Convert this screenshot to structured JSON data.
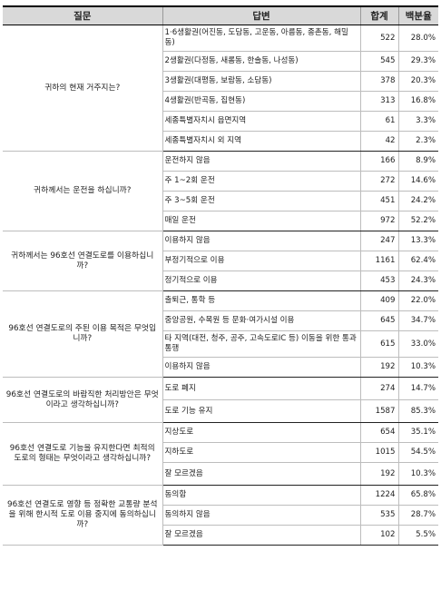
{
  "headers": [
    "질문",
    "답변",
    "합계",
    "백분율"
  ],
  "groups": [
    {
      "question": "귀하의 현재 거주지는?",
      "rows": [
        {
          "answer": "1·6생활권(어진동, 도담동, 고운동, 아름동, 종촌동, 해밀동)",
          "count": "522",
          "pct": "28.0%"
        },
        {
          "answer": "2생활권(다정동, 새롬동, 한솔동, 나성동)",
          "count": "545",
          "pct": "29.3%"
        },
        {
          "answer": "3생활권(대평동, 보람동, 소담동)",
          "count": "378",
          "pct": "20.3%"
        },
        {
          "answer": "4생활권(반곡동, 집현동)",
          "count": "313",
          "pct": "16.8%"
        },
        {
          "answer": "세종특별자치시 읍면지역",
          "count": "61",
          "pct": "3.3%"
        },
        {
          "answer": "세종특별자치시 외 지역",
          "count": "42",
          "pct": "2.3%"
        }
      ]
    },
    {
      "question": "귀하께서는 운전을 하십니까?",
      "rows": [
        {
          "answer": "운전하지 않음",
          "count": "166",
          "pct": "8.9%"
        },
        {
          "answer": "주 1~2회 운전",
          "count": "272",
          "pct": "14.6%"
        },
        {
          "answer": "주 3~5회 운전",
          "count": "451",
          "pct": "24.2%"
        },
        {
          "answer": "매일 운전",
          "count": "972",
          "pct": "52.2%"
        }
      ]
    },
    {
      "question": "귀하께서는 96호선 연결도로를 이용하십니까?",
      "rows": [
        {
          "answer": "이용하지 않음",
          "count": "247",
          "pct": "13.3%"
        },
        {
          "answer": "부정기적으로 이용",
          "count": "1161",
          "pct": "62.4%"
        },
        {
          "answer": "정기적으로 이용",
          "count": "453",
          "pct": "24.3%"
        }
      ]
    },
    {
      "question": "96호선 연결도로의 주된 이용 목적은 무엇입니까?",
      "rows": [
        {
          "answer": "출퇴근, 통학 등",
          "count": "409",
          "pct": "22.0%"
        },
        {
          "answer": "중앙공원, 수목원 등 문화·여가시설 이용",
          "count": "645",
          "pct": "34.7%"
        },
        {
          "answer": "타 지역(대전, 청주, 공주, 고속도로IC 등) 이동을 위한 통과통행",
          "count": "615",
          "pct": "33.0%"
        },
        {
          "answer": "이용하지 않음",
          "count": "192",
          "pct": "10.3%"
        }
      ]
    },
    {
      "question": "96호선 연결도로의 바람직한 처리방안은 무엇이라고 생각하십니까?",
      "rows": [
        {
          "answer": "도로 폐지",
          "count": "274",
          "pct": "14.7%"
        },
        {
          "answer": "도로 기능 유지",
          "count": "1587",
          "pct": "85.3%"
        }
      ]
    },
    {
      "question": "96호선 연결도로 기능을 유지한다면 최적의 도로의 형태는 무엇이라고 생각하십니까?",
      "rows": [
        {
          "answer": "지상도로",
          "count": "654",
          "pct": "35.1%"
        },
        {
          "answer": "지하도로",
          "count": "1015",
          "pct": "54.5%"
        },
        {
          "answer": "잘 모르겠음",
          "count": "192",
          "pct": "10.3%"
        }
      ]
    },
    {
      "question": "96호선 연결도로 영향 등 정확한 교통량 분석을 위해 한시적 도로 이용 중지에 동의하십니까?",
      "rows": [
        {
          "answer": "동의함",
          "count": "1224",
          "pct": "65.8%"
        },
        {
          "answer": "동의하지 않음",
          "count": "535",
          "pct": "28.7%"
        },
        {
          "answer": "잘 모르겠음",
          "count": "102",
          "pct": "5.5%"
        }
      ]
    }
  ]
}
